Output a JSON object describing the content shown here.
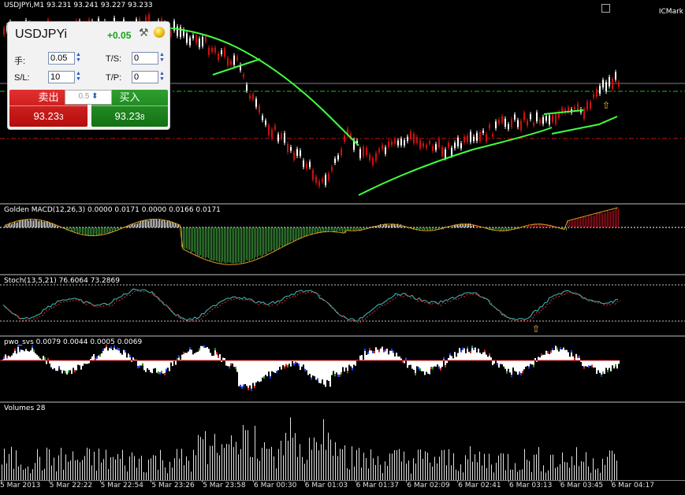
{
  "main": {
    "title": "USDJPYi,M1  93.231 93.241 93.227 93.233",
    "broker": "ICMark"
  },
  "panel": {
    "symbol": "USDJPYi",
    "change": "+0.05",
    "lot_label": "手:",
    "lot_value": "0.05",
    "ts_label": "T/S:",
    "ts_value": "0",
    "sl_label": "S/L:",
    "sl_value": "10",
    "tp_label": "T/P:",
    "tp_value": "0",
    "slippage": "0.5",
    "sell_label": "卖出",
    "sell_price_main": "93.23",
    "sell_price_small": "3",
    "buy_label": "买入",
    "buy_price_main": "93.23",
    "buy_price_small": "8"
  },
  "macd": {
    "label": "Golden MACD(12,26,3) 0.0000 0.0171 0.0000 0.0166 0.0171"
  },
  "stoch": {
    "label": "Stoch(13,5,21) 76.6064 73.2869"
  },
  "pwo": {
    "label": "pwo_svs 0.0079 0.0044 0.0005 0.0069"
  },
  "volumes": {
    "label": "Volumes 28"
  },
  "time_axis": [
    "5 Mar 2013",
    "5 Mar 22:22",
    "5 Mar 22:54",
    "5 Mar 23:26",
    "5 Mar 23:58",
    "6 Mar 00:30",
    "6 Mar 01:03",
    "6 Mar 01:37",
    "6 Mar 02:09",
    "6 Mar 02:41",
    "6 Mar 03:13",
    "6 Mar 03:45",
    "6 Mar 04:17"
  ],
  "colors": {
    "bull": "#ffffff",
    "bear": "#d01010",
    "ma": "#40ff40",
    "sell": "#d01010",
    "buy": "#15a115"
  }
}
